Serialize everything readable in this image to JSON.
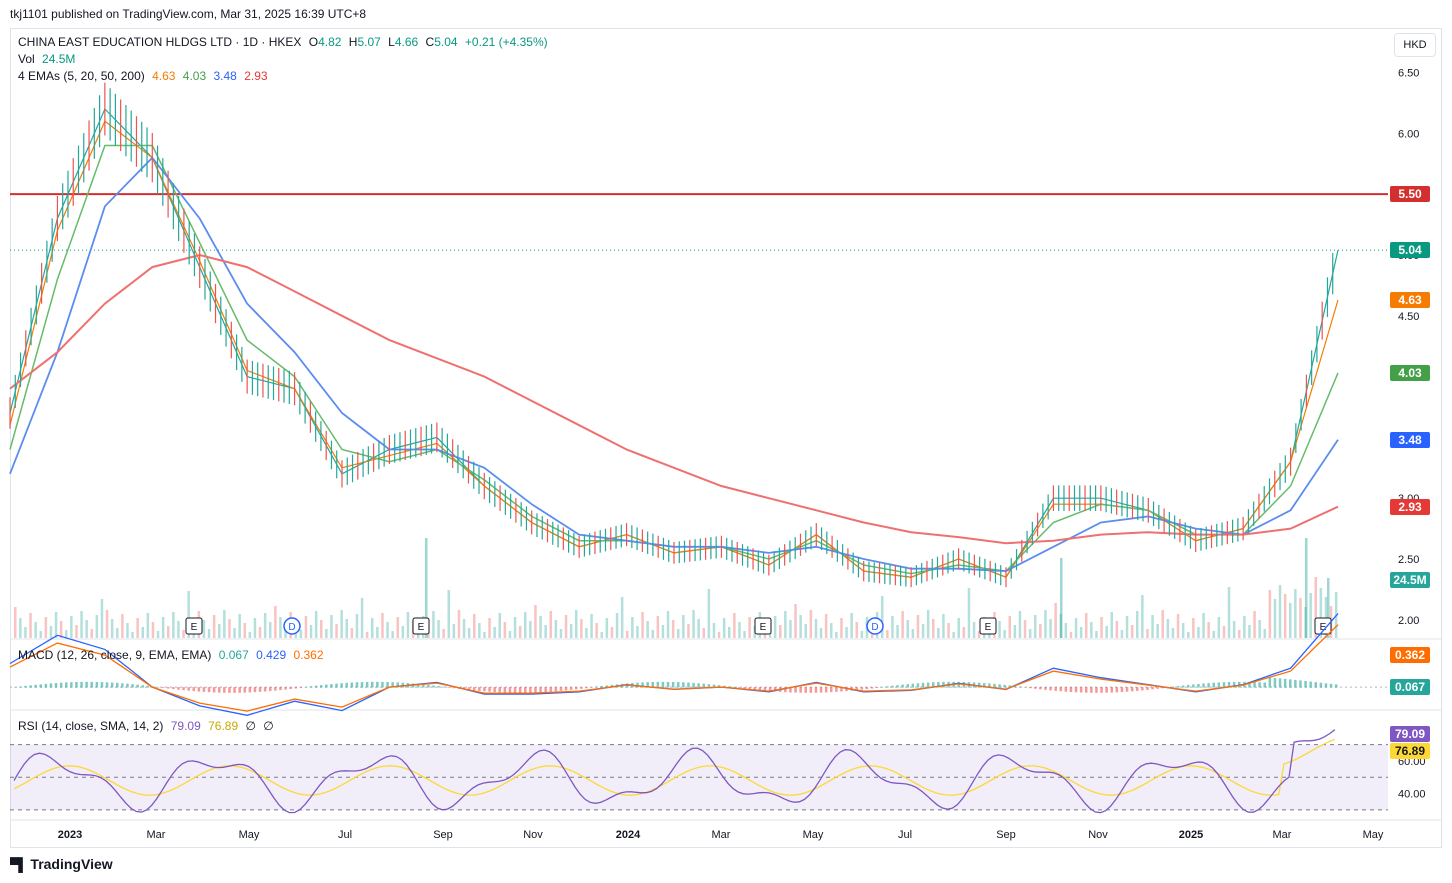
{
  "publish_line": "tkj1101 published on TradingView.com, Mar 31, 2025 16:39 UTC+8",
  "symbol": {
    "name": "CHINA EAST EDUCATION HLDGS LTD · 1D · HKEX",
    "open_label": "O",
    "open": "4.82",
    "high_label": "H",
    "high": "5.07",
    "low_label": "L",
    "low": "4.66",
    "close_label": "C",
    "close": "5.04",
    "change": "+0.21 (+4.35%)"
  },
  "volume": {
    "label": "Vol",
    "value": "24.5M"
  },
  "ema": {
    "label": "4 EMAs (5, 20, 50, 200)",
    "values": [
      "4.63",
      "4.03",
      "3.48",
      "2.93"
    ]
  },
  "macd": {
    "label": "MACD (12, 26, close, 9, EMA, EMA)",
    "values": [
      "0.067",
      "0.429",
      "0.362"
    ]
  },
  "rsi": {
    "label": "RSI (14, close, SMA, 14, 2)",
    "values": [
      "79.09",
      "76.89",
      "∅",
      "∅"
    ]
  },
  "currency_button": "HKD",
  "price_tags": [
    {
      "value": "5.50",
      "color": "#d32f2f"
    },
    {
      "value": "5.04",
      "color": "#089981"
    },
    {
      "value": "4.63",
      "color": "#f57c00"
    },
    {
      "value": "4.03",
      "color": "#43a047"
    },
    {
      "value": "3.48",
      "color": "#2962ff"
    },
    {
      "value": "2.93",
      "color": "#e53935"
    },
    {
      "value": "24.5M",
      "color": "#26a69a"
    }
  ],
  "macd_tags": [
    {
      "value": "0.362",
      "color": "#ff6d00"
    },
    {
      "value": "0.067",
      "color": "#26a69a"
    }
  ],
  "rsi_tags": [
    {
      "value": "79.09",
      "color": "#7e57c2"
    },
    {
      "value": "76.89",
      "color": "#fdd835"
    }
  ],
  "price_axis_ticks": [
    "6.50",
    "6.00",
    "5.50",
    "5.00",
    "4.50",
    "4.00",
    "3.50",
    "3.00",
    "2.50",
    "2.00"
  ],
  "rsi_axis_ticks": [
    "60.00",
    "40.00"
  ],
  "time_axis": [
    "2023",
    "Mar",
    "May",
    "Jul",
    "Sep",
    "Nov",
    "2024",
    "Mar",
    "May",
    "Jul",
    "Sep",
    "Nov",
    "2025",
    "Mar",
    "May"
  ],
  "event_markers": [
    "E",
    "D",
    "E",
    "E",
    "D",
    "E",
    "E"
  ],
  "footer": "TradingView",
  "chart_data": {
    "type": "line",
    "title": "CHINA EAST EDUCATION HLDGS LTD · 1D · HKEX",
    "x": [
      "2022-12",
      "2023-01",
      "2023-02",
      "2023-03",
      "2023-04",
      "2023-05",
      "2023-06",
      "2023-07",
      "2023-08",
      "2023-09",
      "2023-10",
      "2023-11",
      "2023-12",
      "2024-01",
      "2024-02",
      "2024-03",
      "2024-04",
      "2024-05",
      "2024-06",
      "2024-07",
      "2024-08",
      "2024-09",
      "2024-10",
      "2024-11",
      "2024-12",
      "2025-01",
      "2025-02",
      "2025-03",
      "2025-03-31"
    ],
    "series": [
      {
        "name": "Price",
        "values": [
          3.7,
          5.3,
          6.2,
          5.8,
          4.9,
          4.0,
          3.9,
          3.2,
          3.4,
          3.5,
          3.1,
          2.8,
          2.6,
          2.7,
          2.55,
          2.6,
          2.45,
          2.7,
          2.4,
          2.35,
          2.5,
          2.35,
          3.0,
          3.0,
          2.9,
          2.65,
          2.75,
          3.3,
          5.04
        ]
      },
      {
        "name": "EMA 5",
        "values": [
          3.6,
          5.2,
          6.1,
          5.8,
          4.95,
          4.05,
          3.9,
          3.25,
          3.35,
          3.45,
          3.1,
          2.8,
          2.6,
          2.7,
          2.55,
          2.6,
          2.45,
          2.7,
          2.4,
          2.35,
          2.5,
          2.35,
          2.95,
          2.95,
          2.9,
          2.65,
          2.75,
          3.3,
          4.63
        ]
      },
      {
        "name": "EMA 20",
        "values": [
          3.4,
          4.8,
          5.9,
          5.9,
          5.1,
          4.3,
          4.0,
          3.4,
          3.3,
          3.4,
          3.15,
          2.85,
          2.65,
          2.65,
          2.6,
          2.6,
          2.5,
          2.65,
          2.45,
          2.38,
          2.45,
          2.4,
          2.8,
          2.95,
          2.9,
          2.7,
          2.7,
          3.1,
          4.03
        ]
      },
      {
        "name": "EMA 50",
        "values": [
          3.2,
          4.2,
          5.4,
          5.8,
          5.3,
          4.6,
          4.2,
          3.7,
          3.4,
          3.4,
          3.25,
          2.95,
          2.7,
          2.65,
          2.6,
          2.6,
          2.55,
          2.6,
          2.5,
          2.42,
          2.42,
          2.4,
          2.6,
          2.8,
          2.85,
          2.75,
          2.7,
          2.9,
          3.48
        ]
      },
      {
        "name": "EMA 200",
        "values": [
          3.9,
          4.2,
          4.6,
          4.9,
          5.0,
          4.9,
          4.7,
          4.5,
          4.3,
          4.15,
          4.0,
          3.8,
          3.6,
          3.4,
          3.25,
          3.1,
          3.0,
          2.9,
          2.8,
          2.72,
          2.68,
          2.63,
          2.65,
          2.7,
          2.72,
          2.7,
          2.7,
          2.75,
          2.93
        ]
      }
    ],
    "resistance_line": 5.5,
    "ylim": [
      1.85,
      6.85
    ],
    "macd_ylim": [
      -0.2,
      0.45
    ],
    "rsi_ylim": [
      25,
      90
    ],
    "rsi_bands": [
      30,
      50,
      70
    ]
  }
}
